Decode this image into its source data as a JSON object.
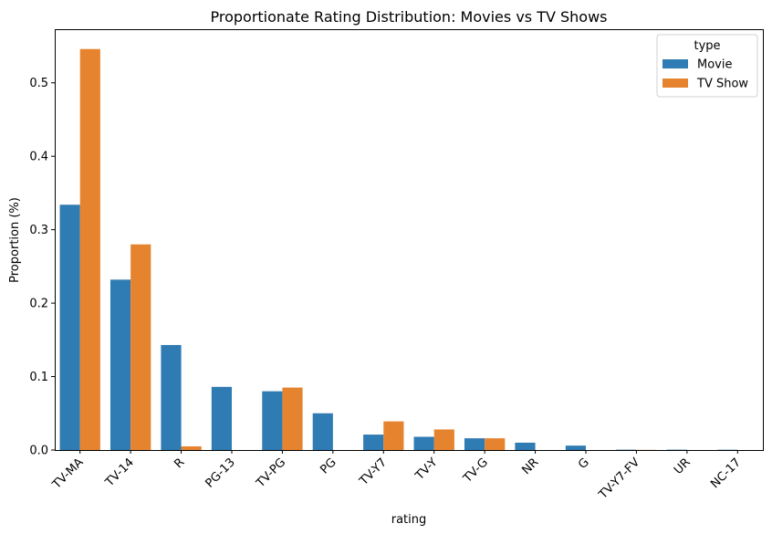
{
  "chart_data": {
    "type": "bar",
    "title": "Proportionate Rating Distribution: Movies vs TV Shows",
    "xlabel": "rating",
    "ylabel": "Proportion (%)",
    "ylim": [
      0,
      0.573
    ],
    "yticks": [
      0.0,
      0.1,
      0.2,
      0.3,
      0.4,
      0.5
    ],
    "ytick_labels": [
      "0.0",
      "0.1",
      "0.2",
      "0.3",
      "0.4",
      "0.5"
    ],
    "categories": [
      "TV-MA",
      "TV-14",
      "R",
      "PG-13",
      "TV-PG",
      "PG",
      "TV-Y7",
      "TV-Y",
      "TV-G",
      "NR",
      "G",
      "TV-Y7-FV",
      "UR",
      "NC-17"
    ],
    "legend": {
      "title": "type",
      "position": "top-right"
    },
    "series": [
      {
        "name": "Movie",
        "color": "#2f7bb3",
        "values": [
          0.334,
          0.232,
          0.143,
          0.086,
          0.08,
          0.05,
          0.021,
          0.018,
          0.016,
          0.01,
          0.006,
          0.0005,
          0.0005,
          0.0004
        ]
      },
      {
        "name": "TV Show",
        "color": "#e6832f",
        "values": [
          0.546,
          0.28,
          0.005,
          0.0,
          0.085,
          0.0,
          0.039,
          0.028,
          0.016,
          0.0,
          0.0,
          0.0002,
          0.0,
          0.0
        ]
      }
    ],
    "grid": false
  }
}
